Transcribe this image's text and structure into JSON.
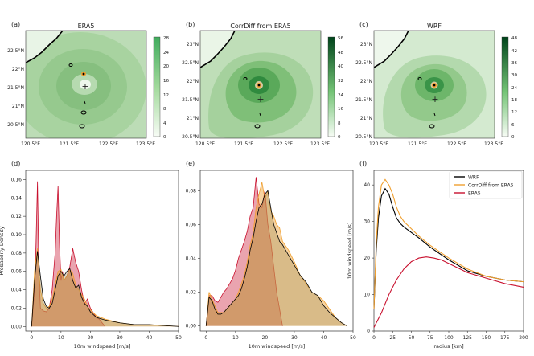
{
  "colors": {
    "wrf": "#000000",
    "corrdiff": "#f0a030",
    "era5": "#c8102e",
    "map_light": "#c3dfbd",
    "map_mid": "#8cc684",
    "map_dark": "#2d8a3e"
  },
  "chart_data": [
    {
      "panel": "(a)",
      "type": "heatmap",
      "title": "ERA5",
      "lon_ticks": [
        "120.5°E",
        "121.5°E",
        "122.5°E",
        "123.5°E"
      ],
      "lat_ticks": [
        "22.5°N",
        "22°N",
        "21.5°N",
        "21°N",
        "20.5°N"
      ],
      "colorbar_ticks": [
        "28",
        "24",
        "20",
        "16",
        "12",
        "8",
        "4",
        "0"
      ],
      "colorbar_range": [
        0,
        28
      ]
    },
    {
      "panel": "(b)",
      "type": "heatmap",
      "title": "CorrDiff from ERA5",
      "lon_ticks": [
        "120.5°E",
        "121.5°E",
        "122.5°E",
        "123.5°E"
      ],
      "lat_ticks": [
        "23°N",
        "22.5°N",
        "22°N",
        "21.5°N",
        "21°N",
        "20.5°N"
      ],
      "colorbar_ticks": [
        "56",
        "48",
        "40",
        "32",
        "24",
        "16",
        "8",
        "0"
      ],
      "colorbar_range": [
        0,
        56
      ]
    },
    {
      "panel": "(c)",
      "type": "heatmap",
      "title": "WRF",
      "lon_ticks": [
        "120.5°E",
        "121.5°E",
        "122.5°E",
        "123.5°E"
      ],
      "lat_ticks": [
        "23°N",
        "22.5°N",
        "22°N",
        "21.5°N",
        "21°N",
        "20.5°N"
      ],
      "colorbar_ticks": [
        "48",
        "42",
        "36",
        "30",
        "24",
        "18",
        "12",
        "6",
        "0"
      ],
      "colorbar_range": [
        0,
        48
      ]
    },
    {
      "panel": "(d)",
      "type": "area",
      "xlabel": "10m windspeed [m/s]",
      "ylabel": "Probability Density",
      "xlim": [
        -2,
        50
      ],
      "ylim": [
        -0.005,
        0.17
      ],
      "xticks": [
        0,
        10,
        20,
        30,
        40,
        50
      ],
      "yticks": [
        0.0,
        0.02,
        0.04,
        0.06,
        0.08,
        0.1,
        0.12,
        0.14,
        0.16
      ],
      "yticklabels": [
        "0.00",
        "0.02",
        "0.04",
        "0.06",
        "0.08",
        "0.10",
        "0.12",
        "0.14",
        "0.16"
      ],
      "series": [
        {
          "name": "ERA5",
          "x": [
            0,
            1,
            1.5,
            2,
            2.5,
            3,
            4,
            5,
            6,
            7,
            8,
            8.5,
            9,
            9.5,
            10,
            10.5,
            11,
            12,
            13,
            14,
            15,
            16,
            17,
            18,
            19,
            20,
            21,
            22,
            23,
            24,
            25
          ],
          "y": [
            0,
            0.04,
            0.09,
            0.158,
            0.06,
            0.02,
            0.017,
            0.016,
            0.02,
            0.04,
            0.08,
            0.12,
            0.153,
            0.09,
            0.05,
            0.06,
            0.05,
            0.055,
            0.065,
            0.085,
            0.07,
            0.06,
            0.04,
            0.025,
            0.03,
            0.02,
            0.015,
            0.01,
            0.008,
            0.004,
            0
          ]
        },
        {
          "name": "CorrDiff from ERA5",
          "x": [
            0,
            1,
            2,
            3,
            4,
            5,
            6,
            7,
            8,
            9,
            10,
            11,
            12,
            13,
            14,
            15,
            16,
            17,
            18,
            19,
            20,
            22,
            25,
            30,
            35,
            40,
            45,
            50
          ],
          "y": [
            0,
            0.06,
            0.085,
            0.04,
            0.025,
            0.02,
            0.022,
            0.03,
            0.045,
            0.06,
            0.062,
            0.05,
            0.055,
            0.062,
            0.058,
            0.045,
            0.04,
            0.035,
            0.03,
            0.022,
            0.018,
            0.012,
            0.008,
            0.004,
            0.002,
            0.002,
            0.001,
            0
          ]
        },
        {
          "name": "WRF",
          "x": [
            0,
            1,
            2,
            3,
            4,
            5,
            6,
            7,
            8,
            9,
            10,
            11,
            12,
            13,
            14,
            15,
            16,
            17,
            18,
            19,
            20,
            22,
            25,
            30,
            35,
            40,
            45,
            50
          ],
          "y": [
            0,
            0.05,
            0.082,
            0.055,
            0.03,
            0.022,
            0.02,
            0.025,
            0.04,
            0.055,
            0.06,
            0.055,
            0.06,
            0.063,
            0.05,
            0.042,
            0.045,
            0.032,
            0.025,
            0.022,
            0.016,
            0.01,
            0.007,
            0.004,
            0.002,
            0.002,
            0.001,
            0
          ]
        }
      ]
    },
    {
      "panel": "(e)",
      "type": "area",
      "xlabel": "10m windspeed [m/s]",
      "xlim": [
        -2,
        50
      ],
      "ylim": [
        -0.003,
        0.092
      ],
      "xticks": [
        0,
        10,
        20,
        30,
        40,
        50
      ],
      "yticks": [
        0.0,
        0.02,
        0.04,
        0.06,
        0.08
      ],
      "yticklabels": [
        "0.00",
        "0.02",
        "0.04",
        "0.06",
        "0.08"
      ],
      "series": [
        {
          "name": "ERA5",
          "x": [
            0,
            1,
            2,
            3,
            4,
            5,
            6,
            7,
            8,
            9,
            10,
            11,
            12,
            13,
            14,
            15,
            16,
            17,
            18,
            19,
            20,
            21,
            22,
            23,
            24,
            25,
            26
          ],
          "y": [
            0,
            0.018,
            0.018,
            0.015,
            0.014,
            0.017,
            0.02,
            0.022,
            0.025,
            0.028,
            0.033,
            0.04,
            0.045,
            0.05,
            0.056,
            0.065,
            0.07,
            0.088,
            0.072,
            0.07,
            0.08,
            0.06,
            0.05,
            0.035,
            0.02,
            0.01,
            0
          ]
        },
        {
          "name": "CorrDiff from ERA5",
          "x": [
            0,
            1,
            2,
            3,
            4,
            5,
            6,
            7,
            8,
            9,
            10,
            11,
            12,
            13,
            14,
            15,
            16,
            17,
            18,
            19,
            20,
            21,
            22,
            23,
            24,
            25,
            26,
            28,
            30,
            32,
            34,
            36,
            38,
            40,
            42,
            44,
            46,
            48
          ],
          "y": [
            0,
            0.02,
            0.016,
            0.012,
            0.008,
            0.008,
            0.008,
            0.01,
            0.012,
            0.014,
            0.016,
            0.02,
            0.025,
            0.03,
            0.038,
            0.048,
            0.055,
            0.07,
            0.078,
            0.085,
            0.075,
            0.08,
            0.068,
            0.065,
            0.06,
            0.058,
            0.05,
            0.045,
            0.038,
            0.03,
            0.025,
            0.02,
            0.018,
            0.015,
            0.01,
            0.005,
            0.002,
            0
          ]
        },
        {
          "name": "WRF",
          "x": [
            0,
            1,
            2,
            3,
            4,
            5,
            6,
            7,
            8,
            9,
            10,
            11,
            12,
            13,
            14,
            15,
            16,
            17,
            18,
            19,
            20,
            21,
            22,
            23,
            24,
            25,
            26,
            28,
            30,
            32,
            34,
            36,
            38,
            40,
            42,
            44,
            46,
            48
          ],
          "y": [
            0,
            0.017,
            0.015,
            0.01,
            0.007,
            0.007,
            0.008,
            0.01,
            0.012,
            0.014,
            0.016,
            0.018,
            0.022,
            0.028,
            0.035,
            0.045,
            0.052,
            0.062,
            0.07,
            0.072,
            0.078,
            0.08,
            0.07,
            0.06,
            0.055,
            0.05,
            0.048,
            0.042,
            0.036,
            0.03,
            0.026,
            0.02,
            0.018,
            0.012,
            0.008,
            0.005,
            0.002,
            0
          ]
        }
      ]
    },
    {
      "panel": "(f)",
      "type": "line",
      "xlabel": "radius [km]",
      "ylabel": "10m windspeed [m/s]",
      "xlim": [
        0,
        200
      ],
      "ylim": [
        0,
        44
      ],
      "xticks": [
        0,
        25,
        50,
        75,
        100,
        125,
        150,
        175,
        200
      ],
      "yticks": [
        0,
        10,
        20,
        30,
        40
      ],
      "legend": [
        "WRF",
        "CorrDiff from ERA5",
        "ERA5"
      ],
      "series": [
        {
          "name": "WRF",
          "x": [
            0,
            3,
            6,
            10,
            15,
            20,
            25,
            30,
            35,
            40,
            50,
            60,
            75,
            100,
            125,
            150,
            175,
            200
          ],
          "y": [
            6,
            22,
            31,
            37,
            39,
            37.5,
            34,
            31,
            29.5,
            28.5,
            27,
            25.5,
            23,
            19.5,
            16.5,
            15,
            14,
            13.5
          ]
        },
        {
          "name": "CorrDiff from ERA5",
          "x": [
            0,
            3,
            6,
            10,
            15,
            20,
            25,
            30,
            35,
            40,
            50,
            60,
            75,
            100,
            125,
            150,
            175,
            200
          ],
          "y": [
            6,
            24,
            34,
            40,
            41.5,
            40,
            37.5,
            34,
            31.5,
            30,
            28,
            26,
            23.5,
            20,
            17,
            15,
            14,
            13.5
          ]
        },
        {
          "name": "ERA5",
          "x": [
            0,
            5,
            10,
            15,
            20,
            30,
            40,
            50,
            60,
            70,
            80,
            90,
            100,
            125,
            150,
            175,
            200
          ],
          "y": [
            1,
            3,
            5,
            7.5,
            10,
            14,
            17,
            19,
            20,
            20.3,
            20,
            19.5,
            18.5,
            16,
            14.5,
            13,
            12
          ]
        }
      ]
    }
  ]
}
